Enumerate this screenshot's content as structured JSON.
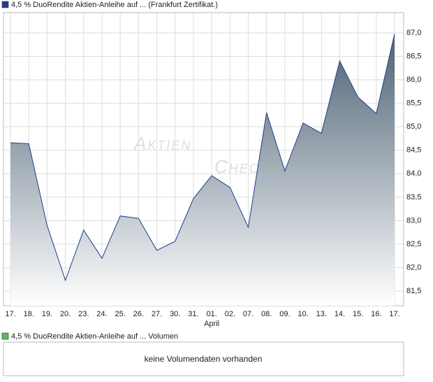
{
  "chart_data": {
    "type": "line",
    "series": [
      {
        "name": "4,5 % DuoRendite Aktien-Anleihe auf ... (Frankfurt Zertifikat.)",
        "color": "#1f3d8f",
        "values": [
          84.66,
          84.64,
          82.9,
          81.73,
          82.8,
          82.2,
          83.1,
          83.05,
          82.37,
          82.56,
          83.47,
          83.96,
          83.71,
          82.86,
          85.3,
          84.06,
          85.08,
          84.86,
          86.4,
          85.63,
          85.28,
          86.98
        ]
      }
    ],
    "categories": [
      "17.",
      "18.",
      "19.",
      "20.",
      "23.",
      "24.",
      "25.",
      "26.",
      "27.",
      "30.",
      "31.",
      "01.",
      "02.",
      "07.",
      "08.",
      "09.",
      "10.",
      "13.",
      "14.",
      "15.",
      "16.",
      "17."
    ],
    "annotations": [
      {
        "text": "April",
        "category": "01."
      }
    ],
    "ylim": [
      81.19,
      87.43
    ],
    "yticks": [
      {
        "value": 81.5,
        "label": "81,5"
      },
      {
        "value": 82,
        "label": "82,0"
      },
      {
        "value": 82.5,
        "label": "82,5"
      },
      {
        "value": 83,
        "label": "83,0"
      },
      {
        "value": 83.5,
        "label": "83,5"
      },
      {
        "value": 84,
        "label": "84,0"
      },
      {
        "value": 84.5,
        "label": "84,5"
      },
      {
        "value": 85,
        "label": "85,0"
      },
      {
        "value": 85.5,
        "label": "85,5"
      },
      {
        "value": 86,
        "label": "86,0"
      },
      {
        "value": 86.5,
        "label": "86,5"
      },
      {
        "value": 87,
        "label": "87,0"
      }
    ],
    "grid": true,
    "watermark": [
      "Aktien",
      "Check"
    ]
  },
  "volume_panel": {
    "legend": "4,5 % DuoRendite Aktien-Anleihe auf ... Volumen",
    "color": "#5cb85c",
    "message": "keine Volumendaten vorhanden"
  }
}
